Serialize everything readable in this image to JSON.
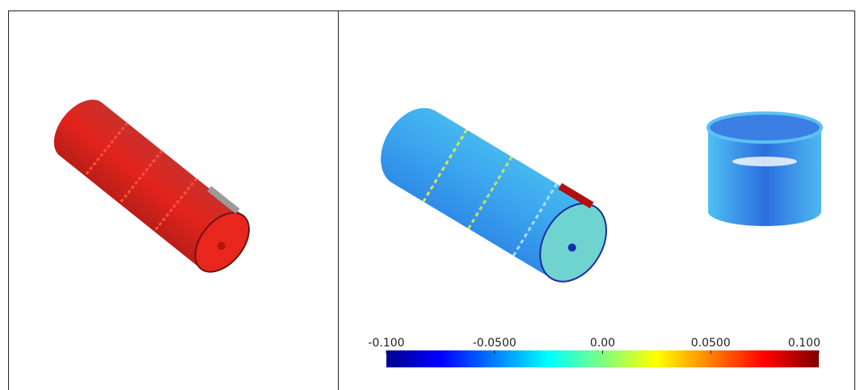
{
  "colorbar": {
    "lim": [
      -0.1,
      0.1
    ],
    "ticks": [
      {
        "value": -0.1,
        "label": "-0.100"
      },
      {
        "value": -0.05,
        "label": "-0.0500"
      },
      {
        "value": 0,
        "label": "0.00"
      },
      {
        "value": 0.05,
        "label": "0.0500"
      },
      {
        "value": 0.1,
        "label": "0.100"
      }
    ]
  }
}
